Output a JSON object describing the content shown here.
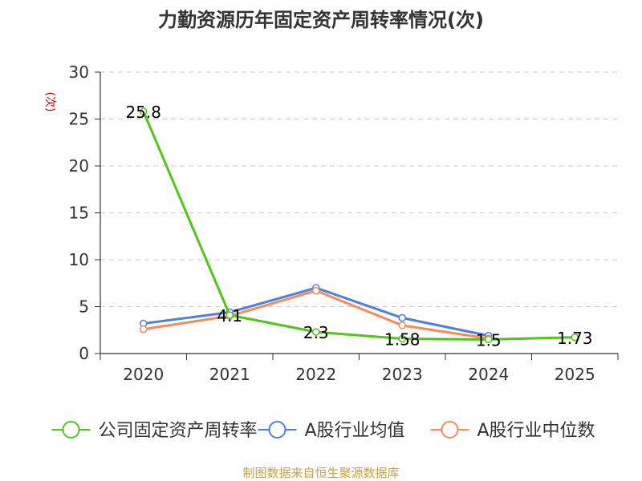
{
  "chart_data": {
    "type": "line",
    "title": "力勤资源历年固定资产周转率情况(次)",
    "ylabel": "(次)",
    "xlabel": "",
    "categories": [
      "2020",
      "2021",
      "2022",
      "2023",
      "2024",
      "2025"
    ],
    "ylim": [
      0,
      30
    ],
    "yticks": [
      0,
      5,
      10,
      15,
      20,
      25,
      30
    ],
    "grid": true,
    "legend_position": "bottom",
    "series": [
      {
        "name": "公司固定资产周转率",
        "color": "#52c41a",
        "values": [
          25.8,
          4.1,
          2.3,
          1.58,
          1.5,
          1.73
        ],
        "labels": [
          "25.8",
          "4.1",
          "2.3",
          "1.58",
          "1.5",
          "1.73"
        ]
      },
      {
        "name": "A股行业均值",
        "color": "#4f7fd9",
        "values": [
          3.2,
          4.4,
          7.0,
          3.8,
          1.9,
          null
        ]
      },
      {
        "name": "A股行业中位数",
        "color": "#f58a5b",
        "values": [
          2.6,
          4.0,
          6.7,
          3.0,
          1.6,
          null
        ]
      }
    ],
    "source": "制图数据来自恒生聚源数据库"
  }
}
